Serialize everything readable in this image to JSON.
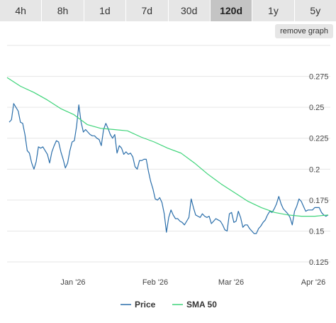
{
  "tabs": [
    {
      "label": "4h",
      "active": false
    },
    {
      "label": "8h",
      "active": false
    },
    {
      "label": "1d",
      "active": false
    },
    {
      "label": "7d",
      "active": false
    },
    {
      "label": "30d",
      "active": false
    },
    {
      "label": "120d",
      "active": true
    },
    {
      "label": "1y",
      "active": false
    },
    {
      "label": "5y",
      "active": false
    }
  ],
  "remove_graph_label": "remove graph",
  "colors": {
    "price": "#2a6eaa",
    "sma": "#3fd47a",
    "grid": "#e6e6e6",
    "tab_bg": "#e6e6e6",
    "tab_active": "#c4c4c4"
  },
  "chart_data": {
    "type": "line",
    "x_ticks": [
      "Jan '26",
      "Feb '26",
      "Mar '26",
      "Apr '26"
    ],
    "y_ticks": [
      0.125,
      0.15,
      0.175,
      0.2,
      0.225,
      0.25,
      0.275
    ],
    "ylim": [
      0.117,
      0.3
    ],
    "grid": true,
    "legend_position": "bottom-center",
    "series": [
      {
        "name": "Price",
        "color": "#2a6eaa",
        "values": [
          0.238,
          0.24,
          0.253,
          0.25,
          0.247,
          0.238,
          0.237,
          0.228,
          0.215,
          0.213,
          0.205,
          0.2,
          0.206,
          0.218,
          0.217,
          0.218,
          0.215,
          0.212,
          0.205,
          0.214,
          0.219,
          0.223,
          0.222,
          0.214,
          0.208,
          0.201,
          0.205,
          0.215,
          0.222,
          0.223,
          0.235,
          0.252,
          0.238,
          0.23,
          0.232,
          0.23,
          0.228,
          0.227,
          0.227,
          0.225,
          0.224,
          0.219,
          0.232,
          0.237,
          0.233,
          0.228,
          0.225,
          0.228,
          0.213,
          0.219,
          0.217,
          0.212,
          0.214,
          0.212,
          0.213,
          0.21,
          0.202,
          0.2,
          0.207,
          0.207,
          0.208,
          0.208,
          0.198,
          0.19,
          0.184,
          0.176,
          0.175,
          0.177,
          0.173,
          0.164,
          0.149,
          0.161,
          0.167,
          0.163,
          0.16,
          0.16,
          0.158,
          0.157,
          0.155,
          0.158,
          0.161,
          0.176,
          0.169,
          0.163,
          0.162,
          0.161,
          0.164,
          0.162,
          0.161,
          0.162,
          0.156,
          0.158,
          0.16,
          0.159,
          0.158,
          0.155,
          0.151,
          0.15,
          0.164,
          0.165,
          0.157,
          0.158,
          0.166,
          0.161,
          0.153,
          0.155,
          0.155,
          0.152,
          0.15,
          0.148,
          0.148,
          0.152,
          0.154,
          0.157,
          0.159,
          0.163,
          0.166,
          0.165,
          0.168,
          0.172,
          0.178,
          0.172,
          0.168,
          0.166,
          0.164,
          0.161,
          0.155,
          0.166,
          0.17,
          0.176,
          0.174,
          0.17,
          0.166,
          0.167,
          0.167,
          0.167,
          0.169,
          0.169,
          0.169,
          0.165,
          0.163,
          0.162,
          0.163
        ]
      },
      {
        "name": "SMA 50",
        "color": "#3fd47a",
        "values": [
          0.274,
          0.267,
          0.262,
          0.256,
          0.249,
          0.244,
          0.236,
          0.233,
          0.232,
          0.231,
          0.226,
          0.222,
          0.217,
          0.213,
          0.205,
          0.196,
          0.188,
          0.181,
          0.174,
          0.169,
          0.165,
          0.163,
          0.162,
          0.162,
          0.163
        ]
      }
    ]
  }
}
